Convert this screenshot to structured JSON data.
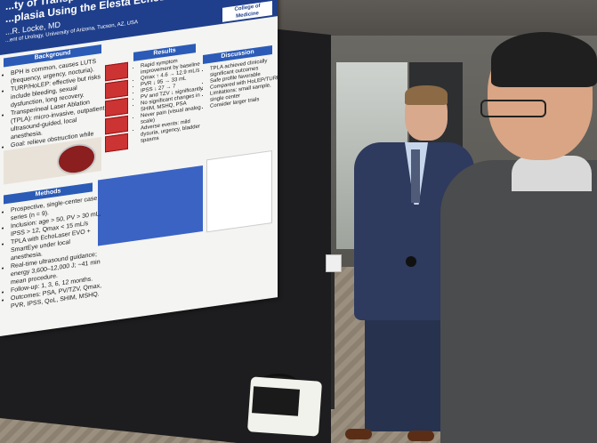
{
  "poster": {
    "title_line1": "...ty of Transperineal Laser Ablation for Benign Prostatic",
    "title_line2": "...plasia Using the Elesta EchoLaser System",
    "authors": "...R. Locke, MD",
    "affiliation": "...ent of Urology, University of Arizona, Tucson, AZ, USA",
    "logo_text": "College of Medicine",
    "sections": {
      "background": "Background",
      "results": "Results",
      "discussion": "Discussion",
      "methods": "Methods"
    },
    "background_text": [
      "BPH is common, causes LUTS (frequency, urgency, nocturia).",
      "TURP/HoLEP: effective but risks include bleeding, sexual dysfunction, long recovery.",
      "Transperineal Laser Ablation (TPLA): micro-invasive, outpatient, ultrasound-guided, local anesthesia.",
      "Goal: relieve obstruction while preserving urinary and sexual function."
    ],
    "methods_list": [
      "Prospective, single-center case series (n = 9).",
      "Inclusion: age > 50, PV > 30 mL, IPSS > 12, Qmax < 15 mL/s",
      "TPLA with EchoLaser EVO + SmartEye under local anesthesia.",
      "Real-time ultrasound guidance; energy 3,600–12,000 J; ~41 min mean procedure.",
      "Follow-up: 1, 3, 6, 12 months.",
      "Outcomes: PSA, PV/TZV, Qmax, PVR, IPSS, QoL, SHIM, MSHQ."
    ],
    "results_text": [
      "Rapid symptom improvement by baseline",
      "Qmax ↑ 4.6 → 12.9 mL/s",
      "PVR ↓ 95 → 33 mL",
      "IPSS ↓ 27 → 7",
      "PV and TZV ↓ significantly",
      "No significant changes in SHIM, MSHQ, PSA",
      "Never pain (visual analog scale)",
      "Adverse events: mild dysuria, urgency, bladder spasms"
    ],
    "discussion_text": [
      "TPLA achieved clinically significant outcomes",
      "Safe profile favorable",
      "Compared with HoLEP/TURP",
      "Limitations: small sample, single center",
      "Consider larger trials"
    ]
  }
}
